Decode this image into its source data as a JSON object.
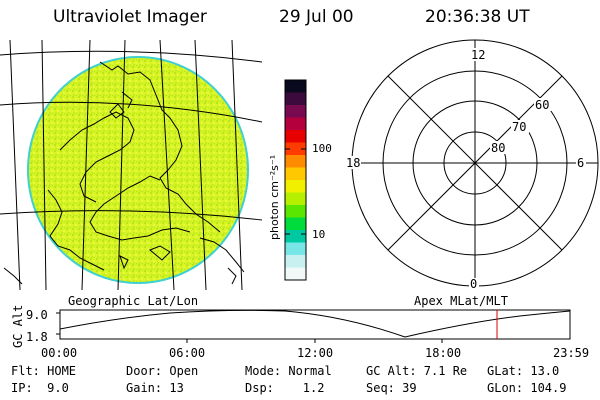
{
  "header": {
    "instrument": "Ultraviolet Imager",
    "date": "29 Jul 00",
    "time": "20:36:38 UT"
  },
  "colorbar": {
    "unit_label": "photon cm⁻²s⁻¹",
    "ticks": [
      "100",
      "10"
    ],
    "colors_top_to_bottom": [
      "#0a0a1e",
      "#3c0a3c",
      "#780a50",
      "#b4003c",
      "#e60000",
      "#ff3c00",
      "#ff8c00",
      "#ffc800",
      "#f0f000",
      "#b4f000",
      "#5ae600",
      "#00dc3c",
      "#00c8a0",
      "#78e6e6",
      "#c8f0f0",
      "#f0f8f8"
    ]
  },
  "image_panel": {
    "fill_color": "#d4f020"
  },
  "polar_plot": {
    "mlt_labels": [
      "12",
      "18",
      "6",
      "0"
    ],
    "lat_labels": [
      "60",
      "70",
      "80"
    ]
  },
  "altitude_plot": {
    "left_label": "Geographic Lat/Lon",
    "right_label": "Apex MLat/MLT",
    "y_axis_label": "GC Alt",
    "y_ticks": [
      "9.0",
      "1.8"
    ],
    "x_ticks": [
      "00:00",
      "06:00",
      "12:00",
      "18:00",
      "23:59"
    ],
    "current_time_marker_color": "#e00000"
  },
  "status": {
    "col1": [
      "Flt: HOME",
      "IP:  9.0"
    ],
    "col2": [
      "Door: Open",
      "Gain: 13"
    ],
    "col3": [
      "Mode: Normal",
      "Dsp:    1.2"
    ],
    "col4": [
      "GC Alt: 7.1 Re",
      "Seq: 39"
    ],
    "col5": [
      "GLat: 13.0",
      "GLon: 104.9"
    ]
  }
}
